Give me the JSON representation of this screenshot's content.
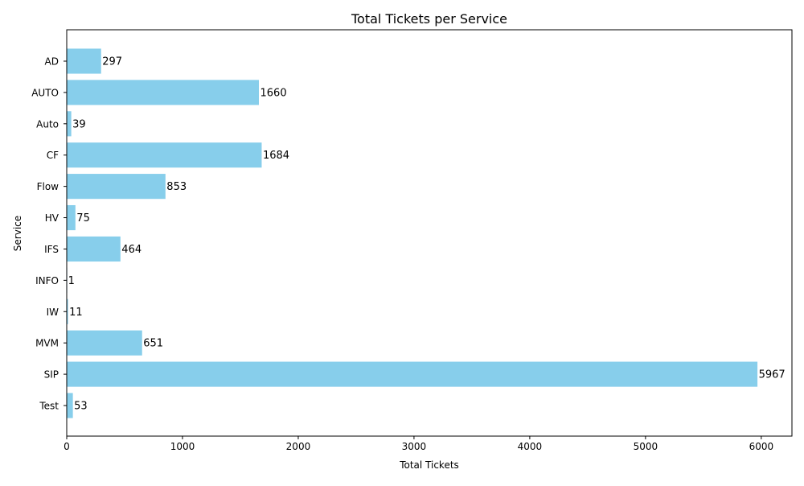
{
  "chart_data": {
    "type": "bar",
    "orientation": "horizontal",
    "title": "Total Tickets per Service",
    "xlabel": "Total Tickets",
    "ylabel": "Service",
    "categories": [
      "AD",
      "AUTO",
      "Auto",
      "CF",
      "Flow",
      "HV",
      "IFS",
      "INFO",
      "IW",
      "MVM",
      "SIP",
      "Test"
    ],
    "values": [
      297,
      1660,
      39,
      1684,
      853,
      75,
      464,
      1,
      11,
      651,
      5967,
      53
    ],
    "xlim": [
      0,
      6265
    ],
    "xticks": [
      0,
      1000,
      2000,
      3000,
      4000,
      5000,
      6000
    ],
    "xtick_labels": [
      "0",
      "1000",
      "2000",
      "3000",
      "4000",
      "5000",
      "6000"
    ],
    "bar_color": "#87CEEB",
    "grid": false,
    "data_labels": true
  }
}
